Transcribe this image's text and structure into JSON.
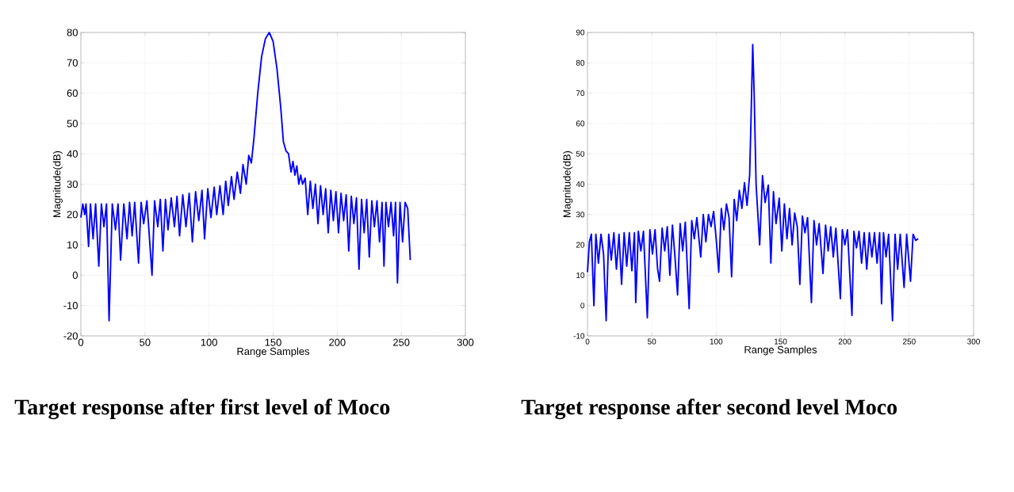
{
  "chart_data": [
    {
      "type": "line",
      "xlabel": "Range Samples",
      "ylabel": "Magnitude(dB)",
      "xlim": [
        0,
        300
      ],
      "ylim": [
        -20,
        80
      ],
      "xticks": [
        0,
        50,
        100,
        150,
        200,
        250,
        300
      ],
      "yticks": [
        -20,
        -10,
        0,
        10,
        20,
        30,
        40,
        50,
        60,
        70,
        80
      ],
      "grid": true,
      "annotations": [
        "Target response after first level of Moco"
      ],
      "series": [
        {
          "color": "#0000ff",
          "x": [
            0,
            1.5,
            3,
            4,
            6,
            7.5,
            9.5,
            11.5,
            14,
            16,
            18,
            20,
            22,
            24.5,
            27,
            29,
            31,
            33.5,
            36,
            38,
            40,
            42,
            45,
            47,
            49,
            51.5,
            55.5,
            57.5,
            60,
            62,
            64,
            66,
            68,
            70.5,
            73,
            75,
            77,
            79.5,
            82,
            84.5,
            87,
            89.5,
            92,
            94.5,
            96.5,
            99,
            101.5,
            104,
            106,
            108.5,
            111,
            113,
            115,
            117.5,
            119.5,
            122,
            124.5,
            126.5,
            129,
            131,
            133,
            135,
            138,
            141,
            144,
            147,
            150,
            153,
            156,
            158,
            160,
            162,
            164,
            165.5,
            167,
            168.5,
            170,
            171.5,
            173,
            175,
            177,
            179,
            181,
            183,
            185,
            187,
            189,
            191,
            193,
            195,
            197,
            199,
            201,
            203,
            205,
            207,
            209,
            211,
            213,
            215,
            217,
            219,
            221,
            223,
            225,
            227,
            229,
            231,
            233,
            235,
            236.5,
            238,
            240,
            242,
            244,
            245.5,
            247,
            249,
            251,
            253,
            255,
            257
          ],
          "values": [
            19,
            23.5,
            20,
            23.5,
            9.5,
            23.5,
            12,
            23.5,
            3,
            23.5,
            16,
            23.5,
            -15,
            23.5,
            15,
            23.5,
            5,
            23.5,
            12,
            24,
            13,
            24,
            4,
            24,
            17,
            24.5,
            0,
            24.5,
            16,
            25,
            8,
            25,
            15,
            25.5,
            16,
            26,
            13,
            26.5,
            16,
            27,
            11,
            27.5,
            18,
            28,
            12,
            28.5,
            19,
            29,
            20,
            29.5,
            20,
            31,
            23,
            32.5,
            25,
            34,
            27,
            36.5,
            30,
            39.5,
            37,
            45,
            60,
            72,
            78,
            80,
            77,
            68,
            55,
            44,
            41,
            40,
            34,
            37.5,
            33,
            36,
            30,
            33,
            30,
            32,
            20,
            31,
            22,
            30,
            17,
            29.5,
            20,
            28.5,
            14,
            28,
            18,
            27.5,
            14,
            27,
            18,
            26.5,
            8,
            26,
            17,
            25.5,
            2,
            25,
            14,
            25,
            6,
            24.5,
            16,
            24.5,
            11,
            24,
            3,
            24,
            16,
            24,
            13,
            24,
            -2.5,
            24,
            11,
            24,
            22,
            5
          ]
        }
      ]
    },
    {
      "type": "line",
      "xlabel": "Range Samples",
      "ylabel": "Magnitude(dB)",
      "xlim": [
        0,
        300
      ],
      "ylim": [
        -10,
        90
      ],
      "xticks": [
        0,
        50,
        100,
        150,
        200,
        250,
        300
      ],
      "yticks": [
        -10,
        0,
        10,
        20,
        30,
        40,
        50,
        60,
        70,
        80,
        90
      ],
      "grid": true,
      "annotations": [
        "Target response after second level Moco"
      ],
      "series": [
        {
          "color": "#0000ff",
          "x": [
            0,
            1.5,
            3,
            5,
            6.5,
            8.5,
            10.5,
            12.5,
            14.5,
            16.5,
            18.5,
            20.5,
            22.5,
            24.5,
            26.5,
            28.5,
            30.5,
            32.5,
            34.5,
            36.5,
            37.5,
            39.5,
            41.5,
            43.5,
            46.5,
            48.5,
            50.5,
            52.5,
            54.5,
            56,
            58,
            60,
            62,
            64,
            66,
            68,
            70,
            72,
            74,
            76,
            79,
            81,
            83,
            85,
            88,
            90,
            92,
            94,
            96,
            98,
            100,
            102,
            104,
            106,
            108,
            110,
            112,
            114,
            116,
            118,
            120,
            122,
            124,
            126,
            127,
            128.4,
            129.5,
            131,
            133.8,
            136,
            138,
            140.5,
            142.5,
            144.5,
            146.5,
            149,
            151,
            153,
            155,
            157,
            159,
            161,
            163,
            165,
            167,
            169,
            171,
            174,
            176,
            178,
            180,
            183,
            185,
            187,
            189,
            191,
            193,
            196.5,
            198,
            200,
            202,
            205.5,
            207,
            209,
            211,
            213,
            215,
            217,
            219,
            221,
            223,
            225,
            227,
            228.5,
            230,
            232,
            234,
            237,
            239,
            241,
            243,
            246,
            248,
            251,
            253,
            255,
            257
          ],
          "values": [
            11,
            21,
            23.5,
            0,
            23.5,
            14,
            23.5,
            17,
            -5,
            23.5,
            15,
            24,
            12,
            23.5,
            7,
            24,
            13,
            24,
            11.5,
            24,
            1,
            24.5,
            18,
            24.5,
            -4,
            25,
            17,
            25,
            12,
            8,
            25.5,
            18,
            26,
            10,
            26.5,
            16,
            3.5,
            27,
            18,
            27.5,
            -1,
            28,
            22,
            29,
            16,
            30,
            21,
            30,
            26,
            31,
            22,
            11,
            32,
            25,
            33.5,
            29,
            9.5,
            35,
            28,
            38,
            32,
            40.5,
            33,
            43,
            60,
            86,
            70,
            40,
            20,
            42.8,
            34,
            39.7,
            14,
            37.5,
            27,
            35.4,
            18,
            33.5,
            22,
            32,
            20,
            30.5,
            26,
            7,
            29.5,
            24,
            29,
            1,
            28,
            20,
            27,
            10.6,
            26.5,
            18,
            26,
            16,
            25.5,
            2.3,
            25,
            20,
            25,
            -3.3,
            24.5,
            19,
            24.5,
            14,
            24,
            12,
            24,
            16,
            24,
            14,
            24,
            0.6,
            24,
            16,
            23.5,
            -5,
            23.5,
            12,
            23.5,
            6,
            23.5,
            8,
            23.5,
            21.5,
            22
          ]
        }
      ]
    }
  ]
}
